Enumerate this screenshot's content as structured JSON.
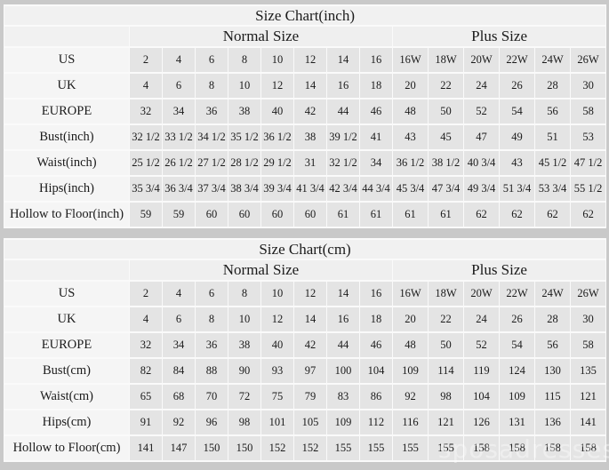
{
  "page": {
    "watermark": "sposadresses",
    "background_color": "#c9c9c9",
    "label_cell_color": "#f5f5f5",
    "value_cell_color": "#e4e4e4",
    "header_cell_color": "#f1f1f1"
  },
  "chart_data": [
    {
      "type": "table",
      "title": "Size Chart(inch)",
      "column_groups": [
        "Normal Size",
        "Plus Size"
      ],
      "normal_columns": 8,
      "plus_columns": 6,
      "rows": [
        {
          "label": "US",
          "normal": [
            "2",
            "4",
            "6",
            "8",
            "10",
            "12",
            "14",
            "16"
          ],
          "plus": [
            "16W",
            "18W",
            "20W",
            "22W",
            "24W",
            "26W"
          ]
        },
        {
          "label": "UK",
          "normal": [
            "4",
            "6",
            "8",
            "10",
            "12",
            "14",
            "16",
            "18"
          ],
          "plus": [
            "20",
            "22",
            "24",
            "26",
            "28",
            "30"
          ]
        },
        {
          "label": "EUROPE",
          "normal": [
            "32",
            "34",
            "36",
            "38",
            "40",
            "42",
            "44",
            "46"
          ],
          "plus": [
            "48",
            "50",
            "52",
            "54",
            "56",
            "58"
          ]
        },
        {
          "label": "Bust(inch)",
          "normal": [
            "32 1/2",
            "33 1/2",
            "34 1/2",
            "35 1/2",
            "36 1/2",
            "38",
            "39 1/2",
            "41"
          ],
          "plus": [
            "43",
            "45",
            "47",
            "49",
            "51",
            "53"
          ]
        },
        {
          "label": "Waist(inch)",
          "normal": [
            "25 1/2",
            "26 1/2",
            "27 1/2",
            "28 1/2",
            "29 1/2",
            "31",
            "32 1/2",
            "34"
          ],
          "plus": [
            "36 1/2",
            "38 1/2",
            "40 3/4",
            "43",
            "45 1/2",
            "47 1/2"
          ]
        },
        {
          "label": "Hips(inch)",
          "normal": [
            "35 3/4",
            "36 3/4",
            "37 3/4",
            "38 3/4",
            "39 3/4",
            "41 3/4",
            "42 3/4",
            "44 3/4"
          ],
          "plus": [
            "45 3/4",
            "47 3/4",
            "49 3/4",
            "51 3/4",
            "53 3/4",
            "55 1/2"
          ]
        },
        {
          "label": "Hollow to Floor(inch)",
          "normal": [
            "59",
            "59",
            "60",
            "60",
            "60",
            "60",
            "61",
            "61"
          ],
          "plus": [
            "61",
            "61",
            "62",
            "62",
            "62",
            "62"
          ]
        }
      ]
    },
    {
      "type": "table",
      "title": "Size Chart(cm)",
      "column_groups": [
        "Normal Size",
        "Plus Size"
      ],
      "normal_columns": 8,
      "plus_columns": 6,
      "rows": [
        {
          "label": "US",
          "normal": [
            "2",
            "4",
            "6",
            "8",
            "10",
            "12",
            "14",
            "16"
          ],
          "plus": [
            "16W",
            "18W",
            "20W",
            "22W",
            "24W",
            "26W"
          ]
        },
        {
          "label": "UK",
          "normal": [
            "4",
            "6",
            "8",
            "10",
            "12",
            "14",
            "16",
            "18"
          ],
          "plus": [
            "20",
            "22",
            "24",
            "26",
            "28",
            "30"
          ]
        },
        {
          "label": "EUROPE",
          "normal": [
            "32",
            "34",
            "36",
            "38",
            "40",
            "42",
            "44",
            "46"
          ],
          "plus": [
            "48",
            "50",
            "52",
            "54",
            "56",
            "58"
          ]
        },
        {
          "label": "Bust(cm)",
          "normal": [
            "82",
            "84",
            "88",
            "90",
            "93",
            "97",
            "100",
            "104"
          ],
          "plus": [
            "109",
            "114",
            "119",
            "124",
            "130",
            "135"
          ]
        },
        {
          "label": "Waist(cm)",
          "normal": [
            "65",
            "68",
            "70",
            "72",
            "75",
            "79",
            "83",
            "86"
          ],
          "plus": [
            "92",
            "98",
            "104",
            "109",
            "115",
            "121"
          ]
        },
        {
          "label": "Hips(cm)",
          "normal": [
            "91",
            "92",
            "96",
            "98",
            "101",
            "105",
            "109",
            "112"
          ],
          "plus": [
            "116",
            "121",
            "126",
            "131",
            "136",
            "141"
          ]
        },
        {
          "label": "Hollow to Floor(cm)",
          "normal": [
            "141",
            "147",
            "150",
            "150",
            "152",
            "152",
            "155",
            "155"
          ],
          "plus": [
            "155",
            "155",
            "158",
            "158",
            "158",
            "158"
          ]
        }
      ]
    }
  ]
}
